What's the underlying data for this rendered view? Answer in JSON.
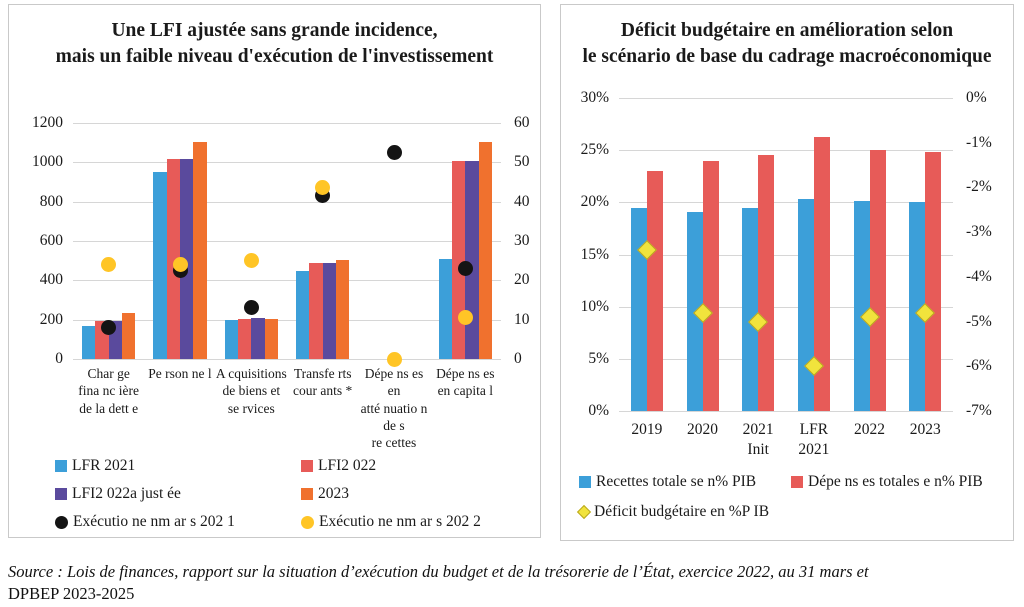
{
  "chart_data": [
    {
      "type": "bar",
      "title": "Une LFI ajustée sans grande incidence,\nmais un faible niveau d'exécution de l'investissement",
      "categories": [
        [
          "Char ge",
          "fina nc ière",
          "de la dett e"
        ],
        [
          "Pe rson ne l"
        ],
        [
          "A cquisitions",
          "de biens et",
          "se rvices"
        ],
        [
          "Transfe rts",
          "cour ants *"
        ],
        [
          "Dépe ns es",
          "en",
          "atté nuatio n",
          "de s",
          "re cettes"
        ],
        [
          "Dépe ns es",
          "en capita l"
        ]
      ],
      "left_axis": {
        "min": 0,
        "max": 1200,
        "tick_labels": [
          "1200",
          "1000",
          "800",
          "600",
          "400",
          "200",
          "0"
        ]
      },
      "right_axis": {
        "min": 0,
        "max": 60,
        "tick_labels": [
          "60",
          "50",
          "40",
          "30",
          "20",
          "10",
          "0"
        ]
      },
      "grid": true,
      "legend_position": "bottom",
      "series": [
        {
          "name": "LFR 2021",
          "marker": "bar",
          "axis": "left",
          "color": "#3c9fd9",
          "values": [
            170,
            950,
            197,
            450,
            0,
            510
          ]
        },
        {
          "name": "LFI2 022",
          "marker": "bar",
          "axis": "left",
          "color": "#e75b58",
          "values": [
            192,
            1015,
            202,
            490,
            0,
            1005
          ]
        },
        {
          "name": "LFI2 022a just ée",
          "marker": "bar",
          "axis": "left",
          "color": "#5a4a9d",
          "values": [
            192,
            1015,
            210,
            487,
            0,
            1005
          ]
        },
        {
          "name": "2023",
          "marker": "bar",
          "axis": "left",
          "color": "#f0712e",
          "values": [
            232,
            1105,
            205,
            503,
            0,
            1105
          ]
        },
        {
          "name": "Exécutio ne  nm ar s 202 1",
          "marker": "circle",
          "axis": "right",
          "color": "#141414",
          "values": [
            8,
            22.5,
            13,
            41.5,
            52.5,
            23
          ]
        },
        {
          "name": "Exécutio ne  nm ar s 202 2",
          "marker": "circle",
          "axis": "right",
          "color": "#ffc526",
          "values": [
            24,
            24,
            25,
            43.5,
            0,
            10.5
          ]
        }
      ]
    },
    {
      "type": "bar",
      "title": "Déficit budgétaire en amélioration selon\nle scénario de base du cadrage macroéconomique",
      "categories": [
        [
          "2019"
        ],
        [
          "2020"
        ],
        [
          "2021",
          "Init"
        ],
        [
          "LFR",
          "2021"
        ],
        [
          "2022"
        ],
        [
          "2023"
        ]
      ],
      "left_axis": {
        "min": 0,
        "max": 30,
        "tick_labels": [
          "30%",
          "25%",
          "20%",
          "15%",
          "10%",
          "5%",
          "0%"
        ]
      },
      "right_axis": {
        "min": -7,
        "max": 0,
        "tick_labels": [
          "0%",
          "-1%",
          "-2%",
          "-3%",
          "-4%",
          "-5%",
          "-6%",
          "-7%"
        ]
      },
      "grid": true,
      "legend_position": "bottom",
      "series": [
        {
          "name": "Recettes totale   se n%  PIB",
          "marker": "bar",
          "axis": "left",
          "color": "#3c9fd9",
          "values": [
            19.5,
            19.1,
            19.5,
            20.3,
            20.1,
            20.0
          ]
        },
        {
          "name": "Dépe ns es  totales  e n%  PIB",
          "marker": "bar",
          "axis": "left",
          "color": "#e75b58",
          "values": [
            23.0,
            24.0,
            24.5,
            26.3,
            25.0,
            24.8
          ]
        },
        {
          "name": "Déficit budgétaire en    %P  IB",
          "marker": "diamond",
          "axis": "right",
          "color": "#f1e33c",
          "values": [
            -3.4,
            -4.8,
            -5.0,
            -6.0,
            -4.9,
            -4.8
          ]
        }
      ]
    }
  ],
  "source": {
    "line1": "Source : Lois de finances, rapport sur la situation d’exécution du budget et de la trésorerie de l’État, exercice 2022, au 31 mars et",
    "line2": "DPBEP 2023-2025"
  }
}
